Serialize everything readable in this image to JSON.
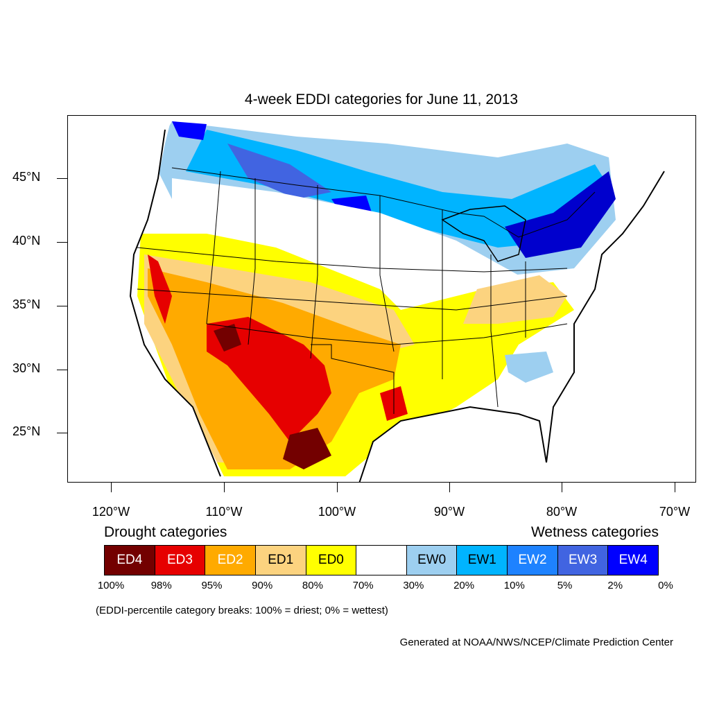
{
  "title": "4-week EDDI categories for June 11, 2013",
  "lat_labels": [
    "45°N",
    "40°N",
    "35°N",
    "30°N",
    "25°N"
  ],
  "lon_labels": [
    "120°W",
    "110°W",
    "100°W",
    "90°W",
    "80°W",
    "70°W"
  ],
  "legend": {
    "drought_heading": "Drought categories",
    "wetness_heading": "Wetness categories",
    "categories": [
      {
        "label": "ED4",
        "color": "#730000",
        "text_color": "#ffffff"
      },
      {
        "label": "ED3",
        "color": "#e60000",
        "text_color": "#ffffff"
      },
      {
        "label": "ED2",
        "color": "#ffaa00",
        "text_color": "#ffffff"
      },
      {
        "label": "ED1",
        "color": "#fcd37f",
        "text_color": "#000000"
      },
      {
        "label": "ED0",
        "color": "#ffff00",
        "text_color": "#000000"
      },
      {
        "label": "",
        "color": "#ffffff",
        "text_color": "#000000"
      },
      {
        "label": "EW0",
        "color": "#9dcff0",
        "text_color": "#000000"
      },
      {
        "label": "EW1",
        "color": "#00b4ff",
        "text_color": "#000000"
      },
      {
        "label": "EW2",
        "color": "#1e82ff",
        "text_color": "#ffffff"
      },
      {
        "label": "EW3",
        "color": "#4164e1",
        "text_color": "#ffffff"
      },
      {
        "label": "EW4",
        "color": "#0000ff",
        "text_color": "#ffffff"
      }
    ],
    "breaks": [
      "100%",
      "98%",
      "95%",
      "90%",
      "80%",
      "70%",
      "30%",
      "20%",
      "10%",
      "5%",
      "2%",
      "0%"
    ]
  },
  "note": "(EDDI-percentile category breaks: 100% = driest; 0% = wettest)",
  "credit": "Generated at NOAA/NWS/NCEP/Climate Prediction Center"
}
